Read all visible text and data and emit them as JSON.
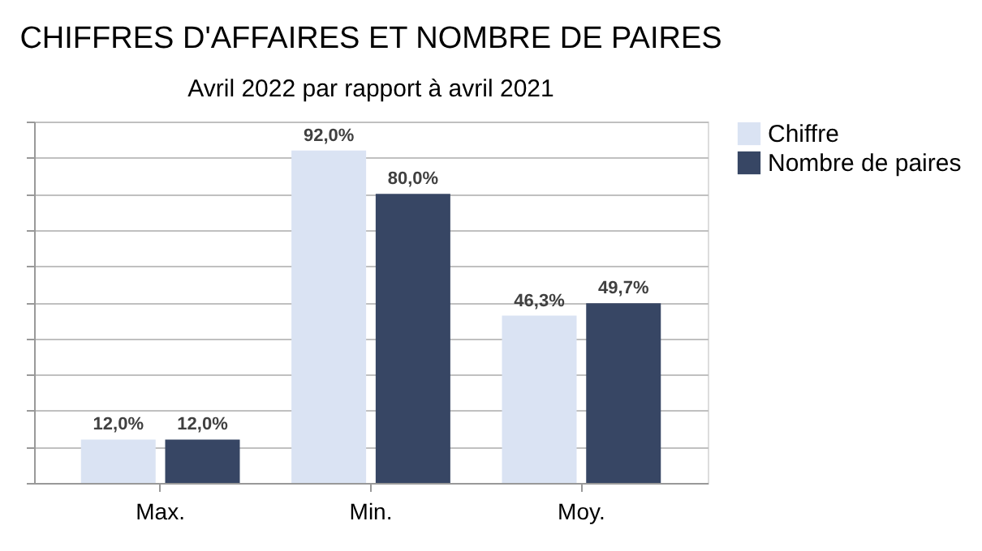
{
  "chart_data": {
    "type": "bar",
    "title": "CHIFFRES D'AFFAIRES ET NOMBRE DE PAIRES",
    "subtitle": "Avril 2022 par rapport à avril 2021",
    "categories": [
      "Max.",
      "Min.",
      "Moy."
    ],
    "series": [
      {
        "name": "Chiffre",
        "color": "#dae3f3",
        "values": [
          12.0,
          92.0,
          46.3
        ],
        "value_labels": [
          "12,0%",
          "92,0%",
          "46,3%"
        ]
      },
      {
        "name": "Nombre de paires",
        "color": "#374664",
        "values": [
          12.0,
          80.0,
          49.7
        ],
        "value_labels": [
          "12,0%",
          "80,0%",
          "49,7%"
        ]
      }
    ],
    "ylim": [
      0,
      100
    ],
    "yticks": [
      {
        "value": 0,
        "label": null
      },
      {
        "value": 10,
        "label": null
      },
      {
        "value": 20,
        "label": null
      },
      {
        "value": 30,
        "label": null
      },
      {
        "value": 40,
        "label": null
      },
      {
        "value": 50,
        "label": null
      },
      {
        "value": 60,
        "label": null
      },
      {
        "value": 70,
        "label": null
      },
      {
        "value": 80,
        "label": null
      },
      {
        "value": 90,
        "label": null
      },
      {
        "value": 100,
        "label": null
      }
    ],
    "tick_labels": "x",
    "grid": "y",
    "legend": "right"
  }
}
